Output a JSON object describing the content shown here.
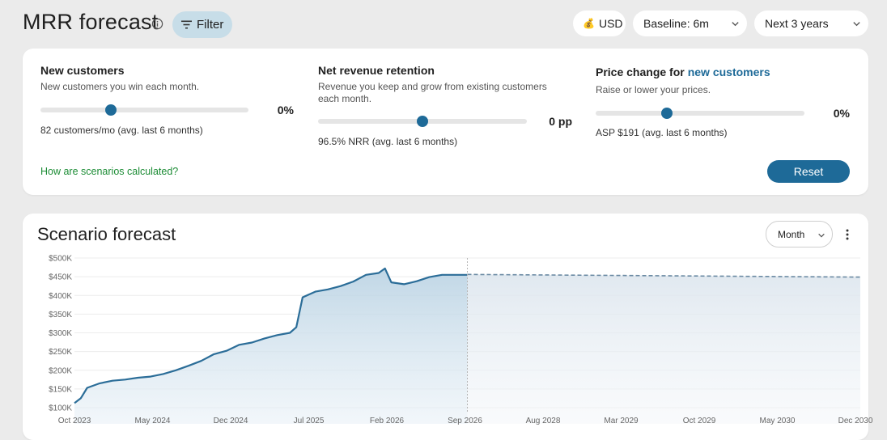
{
  "header": {
    "title": "MRR forecast",
    "filter_label": "Filter",
    "currency_label": "USD",
    "baseline_label": "Baseline: 6m",
    "horizon_label": "Next 3 years"
  },
  "scenarios": {
    "new_customers": {
      "title": "New customers",
      "description": "New customers you win each month.",
      "value": "0%",
      "slider_position": 0.34,
      "avg": "82 customers/mo (avg. last 6 months)"
    },
    "nrr": {
      "title": "Net revenue retention",
      "description": "Revenue you keep and grow from existing customers each month.",
      "value": "0 pp",
      "slider_position": 0.5,
      "avg": "96.5% NRR (avg. last 6 months)"
    },
    "price": {
      "title": "Price change for",
      "title_link": "new customers",
      "description": "Raise or lower your prices.",
      "value": "0%",
      "slider_position": 0.34,
      "avg": "ASP $191 (avg. last 6 months)"
    },
    "help_link": "How are scenarios calculated?",
    "reset_label": "Reset"
  },
  "forecast": {
    "title": "Scenario forecast",
    "granularity": "Month"
  },
  "colors": {
    "accent": "#1e6a98",
    "link_green": "#1c8c35",
    "filter_bg": "#c7dde8"
  },
  "chart_data": {
    "type": "area",
    "ylim": [
      100,
      500
    ],
    "y_unit": "$K",
    "ytick_labels": [
      "$100K",
      "$150K",
      "$200K",
      "$250K",
      "$300K",
      "$350K",
      "$400K",
      "$450K",
      "$500K"
    ],
    "ytick_values": [
      100,
      150,
      200,
      250,
      300,
      350,
      400,
      450,
      500
    ],
    "xtick_labels": [
      "Oct 2023",
      "May 2024",
      "Dec 2024",
      "Jul 2025",
      "Feb 2026",
      "Sep 2026",
      "Aug 2028",
      "Mar 2029",
      "Oct 2029",
      "May 2030",
      "Dec 2030"
    ],
    "grid": true,
    "series": [
      {
        "style": "solid",
        "x": [
          0,
          0.5,
          1,
          2,
          3,
          4,
          5,
          6,
          7,
          8,
          9,
          10,
          11,
          12,
          13,
          14,
          15,
          16,
          17,
          17.5,
          18,
          19,
          20,
          21,
          22,
          23,
          24,
          24.5,
          25,
          26,
          27,
          28,
          29,
          30,
          31
        ],
        "values": [
          112,
          125,
          153,
          165,
          172,
          175,
          180,
          183,
          190,
          200,
          212,
          225,
          243,
          252,
          268,
          274,
          285,
          294,
          300,
          315,
          395,
          410,
          416,
          425,
          437,
          455,
          460,
          472,
          435,
          430,
          438,
          449,
          455,
          455,
          455
        ]
      },
      {
        "style": "dashed",
        "x": [
          31,
          62
        ],
        "values": [
          456,
          449
        ]
      }
    ]
  }
}
